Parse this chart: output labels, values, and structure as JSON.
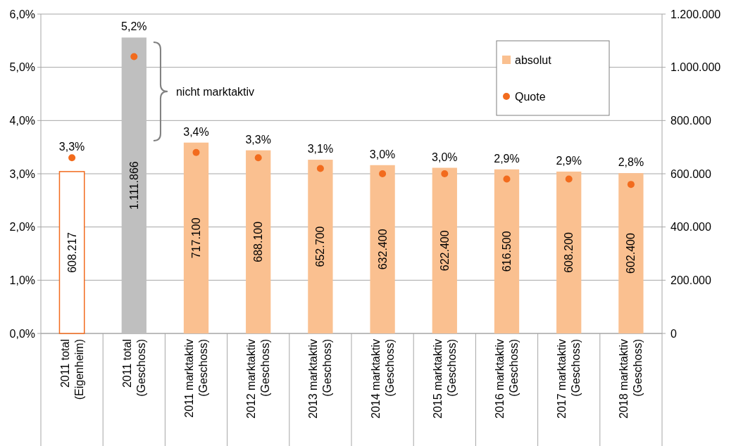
{
  "chart_data": {
    "type": "bar",
    "categories": [
      "2011 total\n(Eigenheim)",
      "2011 total\n(Geschoss)",
      "2011 marktaktiv\n(Geschoss)",
      "2012 marktaktiv\n(Geschoss)",
      "2013 marktaktiv\n(Geschoss)",
      "2014 marktaktiv\n(Geschoss)",
      "2015 marktaktiv\n(Geschoss)",
      "2016 marktaktiv\n(Geschoss)",
      "2017 marktaktiv\n(Geschoss)",
      "2018 marktaktiv\n(Geschoss)"
    ],
    "series": [
      {
        "name": "absolut",
        "axis": "y2",
        "color": "#fac090",
        "colors": [
          "#ffffff",
          "#bfbfbf",
          "#fac090",
          "#fac090",
          "#fac090",
          "#fac090",
          "#fac090",
          "#fac090",
          "#fac090",
          "#fac090"
        ],
        "values": [
          608217,
          1111866,
          717100,
          688100,
          652700,
          632400,
          622400,
          616500,
          608200,
          602400
        ],
        "value_labels": [
          "608.217",
          "1.111.866",
          "717.100",
          "688.100",
          "652.700",
          "632.400",
          "622.400",
          "616.500",
          "608.200",
          "602.400"
        ]
      },
      {
        "name": "Quote",
        "type": "scatter",
        "axis": "y",
        "color": "#f26b1d",
        "marker": "circle",
        "values": [
          3.3,
          5.2,
          3.4,
          3.3,
          3.1,
          3.0,
          3.0,
          2.9,
          2.9,
          2.8
        ],
        "value_labels": [
          "3,3%",
          "5,2%",
          "3,4%",
          "3,3%",
          "3,1%",
          "3,0%",
          "3,0%",
          "2,9%",
          "2,9%",
          "2,8%"
        ]
      }
    ],
    "ylim": [
      0,
      6
    ],
    "yticks": [
      {
        "value": 0,
        "label": "0,0%"
      },
      {
        "value": 1,
        "label": "1,0%"
      },
      {
        "value": 2,
        "label": "2,0%"
      },
      {
        "value": 3,
        "label": "3,0%"
      },
      {
        "value": 4,
        "label": "4,0%"
      },
      {
        "value": 5,
        "label": "5,0%"
      },
      {
        "value": 6,
        "label": "6,0%"
      }
    ],
    "y2lim": [
      0,
      1200000
    ],
    "y2ticks": [
      0,
      {
        "value": 200000,
        "label": "200.000"
      },
      {
        "value": 400000,
        "label": "400.000"
      },
      {
        "value": 600000,
        "label": "600.000"
      },
      {
        "value": 800000,
        "label": "800.000"
      },
      {
        "value": 1000000,
        "label": "1.000.000"
      },
      {
        "value": 1200000,
        "label": "1.200.000"
      }
    ],
    "annotations": [
      "nicht marktaktiv"
    ],
    "grid": "y",
    "legend": "top right"
  }
}
